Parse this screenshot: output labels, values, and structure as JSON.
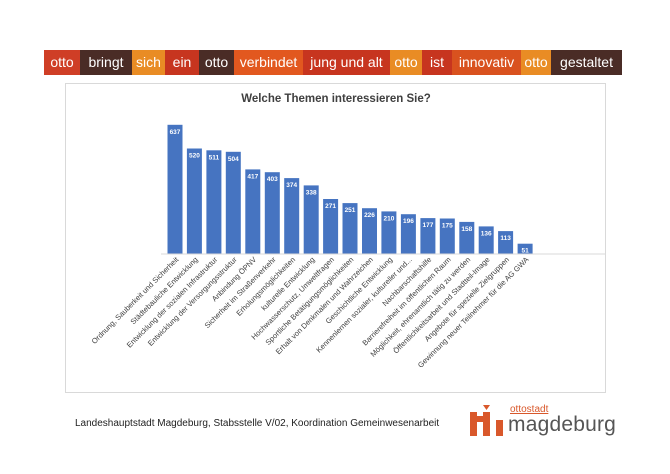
{
  "banner": [
    {
      "text": "otto",
      "bg": "#cf3e26"
    },
    {
      "text": "bringt",
      "bg": "#4a2c26"
    },
    {
      "text": "sich",
      "bg": "#e98c24"
    },
    {
      "text": "ein",
      "bg": "#c7351f"
    },
    {
      "text": "otto",
      "bg": "#4a2c26"
    },
    {
      "text": "verbindet",
      "bg": "#e2581f"
    },
    {
      "text": "jung und alt",
      "bg": "#c7351f"
    },
    {
      "text": "otto",
      "bg": "#e98c24"
    },
    {
      "text": "ist",
      "bg": "#c7351f"
    },
    {
      "text": "innovativ",
      "bg": "#d9521f"
    },
    {
      "text": "otto",
      "bg": "#e98c24"
    },
    {
      "text": "gestaltet",
      "bg": "#4a2c26"
    }
  ],
  "chart_data": {
    "type": "bar",
    "title": "Welche Themen interessieren Sie?",
    "categories": [
      "Ordnung, Sauberkeit und Sicherheit",
      "Städtebauliche Entwicklung",
      "Entwicklung der sozialen Infrastruktur",
      "Entwicklung der Versorgungsstruktur",
      "Anbindung ÖPNV",
      "Sicherheit im Straßenverkehr",
      "Erholungsmöglichkeiten",
      "kulturelle Entwicklung",
      "Hochwasserschutz, Umweltfragen",
      "Sportliche Betätigungsmöglichkeiten",
      "Erhalt von Denkmalen und Wahrzeichen",
      "Geschichtliche Entwicklung",
      "Kennenlernen sozialer, kultureller und...",
      "Nachbarschaftshilfe",
      "Barrierefreiheit im öffentlichen Raum",
      "Möglichkeit, ehrenamtlich tätig zu werden",
      "Öffentlichkeitsarbeit und Stadtteil-Image",
      "Angebote für spezielle Zielgruppen",
      "Gewinnung neuer Teilnehmer für die AG GWA"
    ],
    "values": [
      637,
      520,
      511,
      504,
      417,
      403,
      374,
      338,
      271,
      251,
      226,
      210,
      196,
      177,
      175,
      158,
      136,
      113,
      51
    ],
    "ylim": [
      0,
      700
    ],
    "bar_color": "#4674c1",
    "grid": false,
    "legend": false
  },
  "footer": {
    "text": "Landeshauptstadt Magdeburg, Stabsstelle V/02, Koordination Gemeinwesenarbeit"
  },
  "logo": {
    "sub": "ottostadt",
    "main": "magdeburg",
    "color": "#d9582b"
  }
}
